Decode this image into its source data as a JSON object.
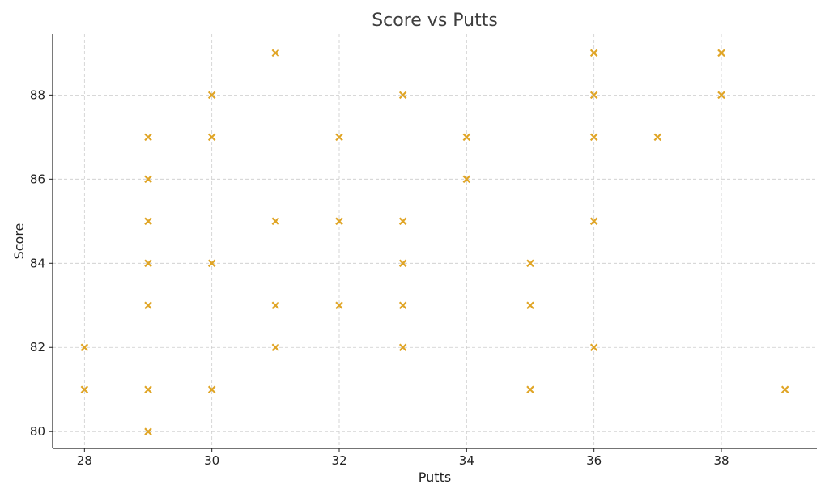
{
  "chart_data": {
    "type": "scatter",
    "title": "Score vs Putts",
    "xlabel": "Putts",
    "ylabel": "Score",
    "xlim": [
      27.5,
      39.5
    ],
    "ylim": [
      79.6,
      89.45
    ],
    "xticks": [
      28,
      30,
      32,
      34,
      36,
      38
    ],
    "yticks": [
      80,
      82,
      84,
      86,
      88
    ],
    "grid": true,
    "marker": "x",
    "color": "#E0A526",
    "points": [
      {
        "x": 28,
        "y": 82
      },
      {
        "x": 28,
        "y": 81
      },
      {
        "x": 29,
        "y": 87
      },
      {
        "x": 29,
        "y": 86
      },
      {
        "x": 29,
        "y": 85
      },
      {
        "x": 29,
        "y": 84
      },
      {
        "x": 29,
        "y": 83
      },
      {
        "x": 29,
        "y": 81
      },
      {
        "x": 29,
        "y": 80
      },
      {
        "x": 30,
        "y": 88
      },
      {
        "x": 30,
        "y": 87
      },
      {
        "x": 30,
        "y": 84
      },
      {
        "x": 30,
        "y": 81
      },
      {
        "x": 31,
        "y": 89
      },
      {
        "x": 31,
        "y": 85
      },
      {
        "x": 31,
        "y": 83
      },
      {
        "x": 31,
        "y": 82
      },
      {
        "x": 32,
        "y": 87
      },
      {
        "x": 32,
        "y": 85
      },
      {
        "x": 32,
        "y": 83
      },
      {
        "x": 33,
        "y": 88
      },
      {
        "x": 33,
        "y": 85
      },
      {
        "x": 33,
        "y": 84
      },
      {
        "x": 33,
        "y": 83
      },
      {
        "x": 33,
        "y": 82
      },
      {
        "x": 34,
        "y": 87
      },
      {
        "x": 34,
        "y": 86
      },
      {
        "x": 35,
        "y": 84
      },
      {
        "x": 35,
        "y": 83
      },
      {
        "x": 35,
        "y": 81
      },
      {
        "x": 36,
        "y": 89
      },
      {
        "x": 36,
        "y": 88
      },
      {
        "x": 36,
        "y": 87
      },
      {
        "x": 36,
        "y": 85
      },
      {
        "x": 36,
        "y": 82
      },
      {
        "x": 37,
        "y": 87
      },
      {
        "x": 38,
        "y": 89
      },
      {
        "x": 38,
        "y": 88
      },
      {
        "x": 39,
        "y": 81
      }
    ]
  }
}
